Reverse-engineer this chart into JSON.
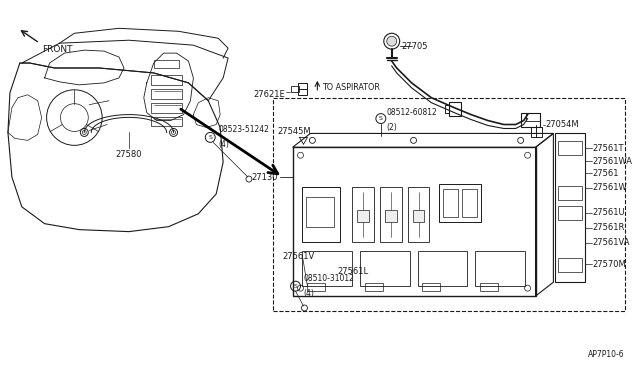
{
  "bg_color": "#ffffff",
  "lc": "#1a1a1a",
  "diagram_ref": "AP7P10-6",
  "fs": 6.0,
  "labels": {
    "front": "FRONT",
    "to_aspirator": "TO ASPIRATOR",
    "27705": "27705",
    "27054M": "27054M",
    "27621E": "27621E",
    "08512": "08512-60812",
    "08512b": "(2)",
    "27545M": "27545M",
    "27130": "27130",
    "27561T": "27561T",
    "27561WA": "27561WA",
    "27561": "27561",
    "27561W": "27561W",
    "27561U": "27561U",
    "27561R": "27561R",
    "27561VA": "27561VA",
    "27561V": "27561V",
    "27561L": "27561L",
    "27570M": "27570M",
    "27580": "27580",
    "08523": "08523-51242",
    "08523b": "(4)",
    "08510": "08510-31012",
    "08510b": "(4)"
  }
}
